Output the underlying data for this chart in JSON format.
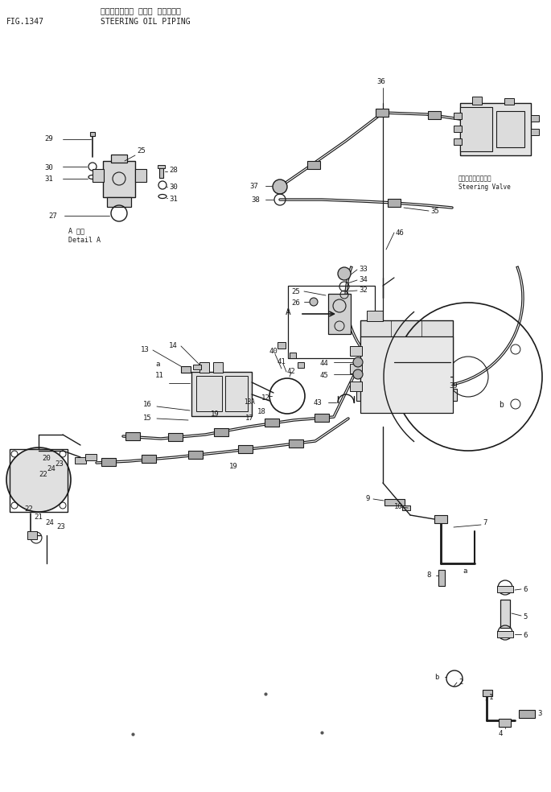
{
  "title_jp": "ステアリング　 オイル パイピング",
  "title_en": "STEERING OIL PIPING",
  "fig_label": "FIG.1347",
  "bg_color": "#ffffff",
  "line_color": "#000000",
  "figsize": [
    6.85,
    9.84
  ],
  "dpi": 100,
  "steering_valve_jp": "ステアリングバルブ",
  "steering_valve_en": "Steering Valve",
  "detail_a_jp": "A 詳細",
  "detail_a_en": "Detail A"
}
